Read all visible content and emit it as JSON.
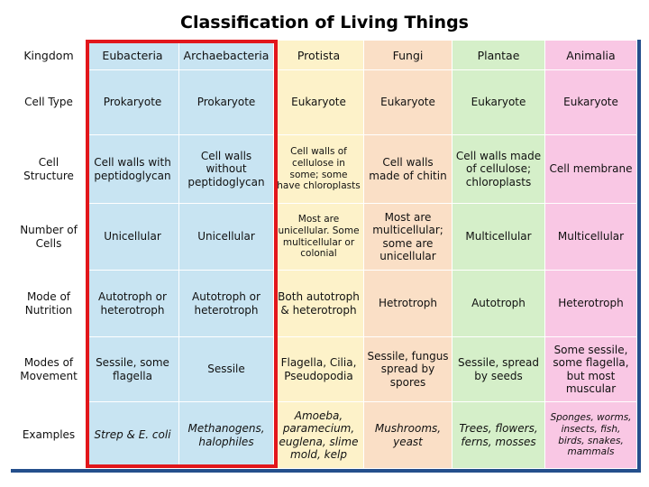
{
  "title": "Classification of Living Things",
  "headers": [
    "Kingdom",
    "Eubacteria",
    "Archaebacteria",
    "Protista",
    "Fungi",
    "Plantae",
    "Animalia"
  ],
  "rows": [
    {
      "label": "Cell Type",
      "cells": [
        "Prokaryote",
        "Prokaryote",
        "Eukaryote",
        "Eukaryote",
        "Eukaryote",
        "Eukaryote"
      ]
    },
    {
      "label": "Cell Structure",
      "cells": [
        "Cell walls with peptidoglycan",
        "Cell walls without peptidoglycan",
        "Cell walls of cellulose in some; some have chloroplasts",
        "Cell walls made of chitin",
        "Cell walls made of cellulose; chloroplasts",
        "Cell membrane"
      ]
    },
    {
      "label": "Number of Cells",
      "cells": [
        "Unicellular",
        "Unicellular",
        "Most are unicellular. Some multicellular or colonial",
        "Most are multicellular; some are unicellular",
        "Multicellular",
        "Multicellular"
      ]
    },
    {
      "label": "Mode of Nutrition",
      "cells": [
        "Autotroph or heterotroph",
        "Autotroph or heterotroph",
        "Both autotroph & heterotroph",
        "Hetrotroph",
        "Autotroph",
        "Heterotroph"
      ]
    },
    {
      "label": "Modes of Movement",
      "cells": [
        "Sessile, some flagella",
        "Sessile",
        "Flagella, Cilia, Pseudopodia",
        "Sessile, fungus spread by spores",
        "Sessile, spread by seeds",
        "Some sessile, some flagella, but most muscular"
      ]
    },
    {
      "label": "Examples",
      "cells": [
        "Strep & E. coli",
        "Methanogens, halophiles",
        "Amoeba, paramecium, euglena, slime mold, kelp",
        "Mushrooms, yeast",
        "Trees, flowers, ferns, mosses",
        "Sponges, worms, insects, fish, birds, snakes, mammals"
      ]
    }
  ],
  "colors": {
    "eubacteria": "#c8e4f2",
    "archaebacteria": "#c8e4f2",
    "protista": "#fdf2c9",
    "fungi": "#fadfc6",
    "plantae": "#d5efc9",
    "animalia": "#f9c7e4",
    "highlight_box": "#e2161b",
    "frame_shadow": "#244f8c"
  }
}
